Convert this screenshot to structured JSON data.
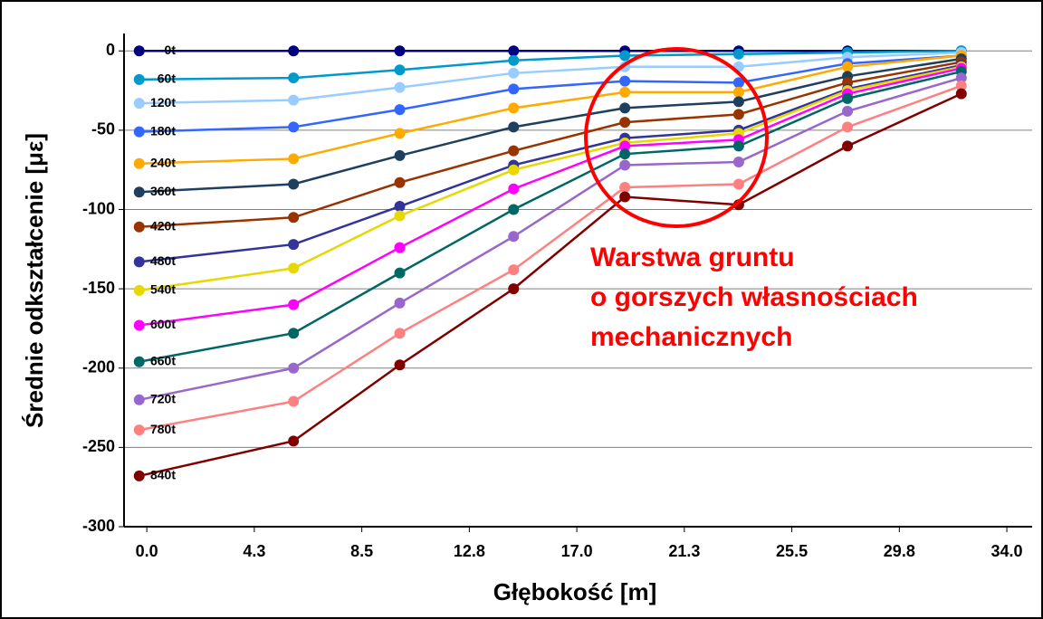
{
  "chart_data": {
    "type": "line",
    "xlabel": "Głębokość [m]",
    "ylabel": "Średnie odkształcenie [με]",
    "annotations": [
      "Warstwa gruntu",
      "o gorszych własnościach",
      "mechanicznych"
    ],
    "annotation_color": "#ff0000",
    "x": [
      -0.3,
      5.8,
      10.0,
      14.5,
      18.9,
      23.4,
      27.7,
      32.2
    ],
    "xlim": [
      -0.9,
      35
    ],
    "xticks": [
      {
        "value": 0,
        "label": "0.0"
      },
      {
        "value": 4.25,
        "label": "4.3"
      },
      {
        "value": 8.5,
        "label": "8.5"
      },
      {
        "value": 12.75,
        "label": "12.8"
      },
      {
        "value": 17,
        "label": "17.0"
      },
      {
        "value": 21.25,
        "label": "21.3"
      },
      {
        "value": 25.5,
        "label": "25.5"
      },
      {
        "value": 29.75,
        "label": "29.8"
      },
      {
        "value": 34,
        "label": "34.0"
      }
    ],
    "ylim": [
      -300,
      11
    ],
    "yticks": [
      0,
      -50,
      -100,
      -150,
      -200,
      -250,
      -300
    ],
    "grid": true,
    "series": [
      {
        "name": "0t",
        "color": "#000080",
        "values": [
          0,
          0,
          0,
          0,
          0,
          0,
          0,
          0
        ]
      },
      {
        "name": "60t",
        "color": "#0099cc",
        "values": [
          -18,
          -17,
          -12,
          -6,
          -3,
          -2,
          -1,
          0
        ]
      },
      {
        "name": "120t",
        "color": "#99ccff",
        "values": [
          -33,
          -31,
          -23,
          -14,
          -10,
          -10,
          -4,
          -1
        ]
      },
      {
        "name": "180t",
        "color": "#3366ff",
        "values": [
          -51,
          -48,
          -37,
          -24,
          -19,
          -20,
          -8,
          -3
        ]
      },
      {
        "name": "240t",
        "color": "#ffaa00",
        "values": [
          -71,
          -68,
          -52,
          -36,
          -26,
          -26,
          -10,
          -3
        ]
      },
      {
        "name": "360t",
        "color": "#1f3f5f",
        "values": [
          -89,
          -84,
          -66,
          -48,
          -36,
          -32,
          -16,
          -5
        ]
      },
      {
        "name": "420t",
        "color": "#993300",
        "values": [
          -111,
          -105,
          -83,
          -63,
          -45,
          -40,
          -20,
          -7
        ]
      },
      {
        "name": "480t",
        "color": "#333399",
        "values": [
          -133,
          -122,
          -98,
          -72,
          -55,
          -50,
          -24,
          -9
        ]
      },
      {
        "name": "540t",
        "color": "#e6d800",
        "values": [
          -151,
          -137,
          -104,
          -75,
          -58,
          -52,
          -25,
          -10
        ]
      },
      {
        "name": "600t",
        "color": "#ff00ff",
        "values": [
          -173,
          -160,
          -124,
          -87,
          -60,
          -56,
          -27,
          -11
        ]
      },
      {
        "name": "660t",
        "color": "#006666",
        "values": [
          -196,
          -178,
          -140,
          -100,
          -65,
          -60,
          -30,
          -13
        ]
      },
      {
        "name": "720t",
        "color": "#9966cc",
        "values": [
          -220,
          -200,
          -159,
          -117,
          -72,
          -70,
          -38,
          -17
        ]
      },
      {
        "name": "780t",
        "color": "#ff8080",
        "values": [
          -239,
          -221,
          -178,
          -138,
          -86,
          -84,
          -48,
          -22
        ]
      },
      {
        "name": "840t",
        "color": "#800000",
        "values": [
          -268,
          -246,
          -198,
          -150,
          -92,
          -97,
          -60,
          -27
        ]
      }
    ]
  }
}
